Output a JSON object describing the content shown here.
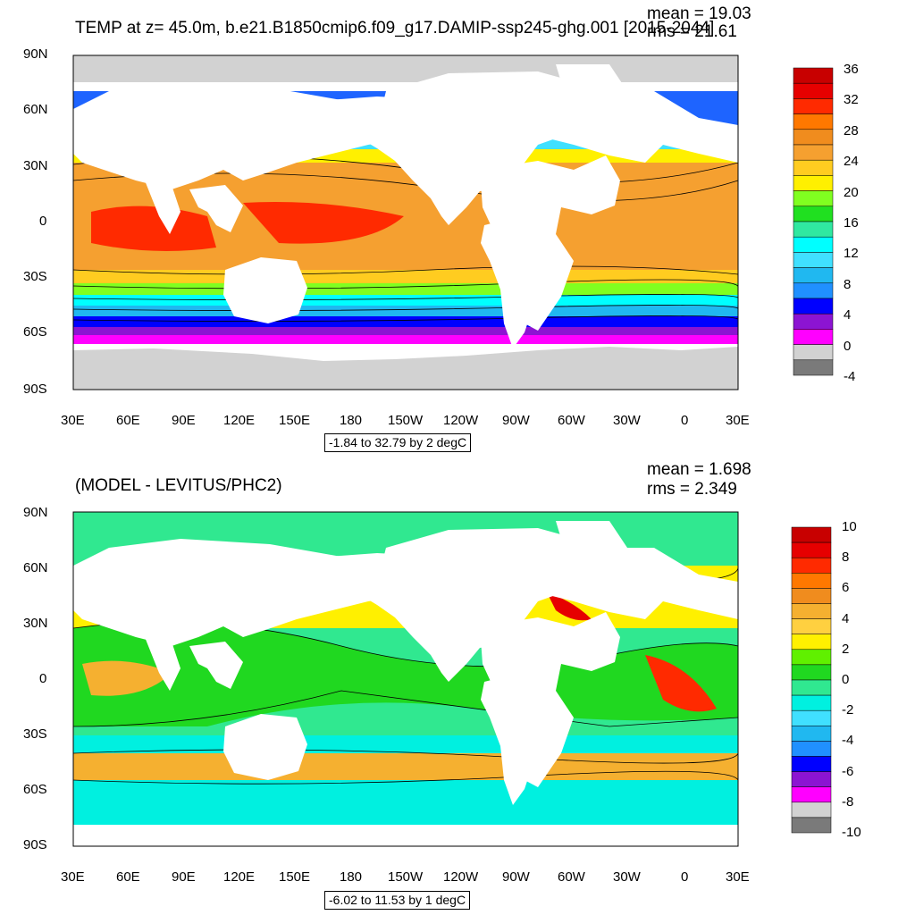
{
  "panels": [
    {
      "title": "TEMP at z=  45.0m, b.e21.B1850cmip6.f09_g17.DAMIP-ssp245-ghg.001 [2015-2044]",
      "stats": {
        "mean": "mean = 19.03",
        "rms": "rms = 21.61"
      },
      "lat_labels": [
        "90N",
        "60N",
        "30N",
        "0",
        "30S",
        "60S",
        "90S"
      ],
      "lon_labels": [
        "30E",
        "60E",
        "90E",
        "120E",
        "150E",
        "180",
        "150W",
        "120W",
        "90W",
        "60W",
        "30W",
        "0",
        "30E"
      ],
      "range_text": "-1.84 to 32.79 by 2 degC",
      "colorbar": {
        "labels": [
          "36",
          "32",
          "28",
          "24",
          "20",
          "16",
          "12",
          "8",
          "4",
          "0",
          "-4"
        ],
        "colors": [
          "#c80000",
          "#e60000",
          "#ff2a00",
          "#ff7800",
          "#f08c1e",
          "#f5a030",
          "#ffcc20",
          "#fff000",
          "#80ff20",
          "#20e020",
          "#30e8a0",
          "#00ffff",
          "#40e0ff",
          "#20b8f0",
          "#2090ff",
          "#0000ff",
          "#8c14d2",
          "#ff00ff",
          "#d2d2d2",
          "#7a7a7a"
        ]
      }
    },
    {
      "title": "(MODEL - LEVITUS/PHC2)",
      "stats": {
        "mean": "mean = 1.698",
        "rms": "rms = 2.349"
      },
      "lat_labels": [
        "90N",
        "60N",
        "30N",
        "0",
        "30S",
        "60S",
        "90S"
      ],
      "lon_labels": [
        "30E",
        "60E",
        "90E",
        "120E",
        "150E",
        "180",
        "150W",
        "120W",
        "90W",
        "60W",
        "30W",
        "0",
        "30E"
      ],
      "range_text": "-6.02 to 11.53 by 1 degC",
      "colorbar": {
        "labels": [
          "10",
          "8",
          "6",
          "4",
          "2",
          "0",
          "-2",
          "-4",
          "-6",
          "-8",
          "-10"
        ],
        "colors": [
          "#c80000",
          "#e60000",
          "#ff2a00",
          "#ff7800",
          "#f08c1e",
          "#f5b030",
          "#ffd040",
          "#fff000",
          "#60f000",
          "#20d820",
          "#30e890",
          "#00f0e0",
          "#40e0ff",
          "#20b8f0",
          "#2090ff",
          "#0000ff",
          "#8c14d2",
          "#ff00ff",
          "#d2d2d2",
          "#7a7a7a"
        ]
      }
    }
  ]
}
